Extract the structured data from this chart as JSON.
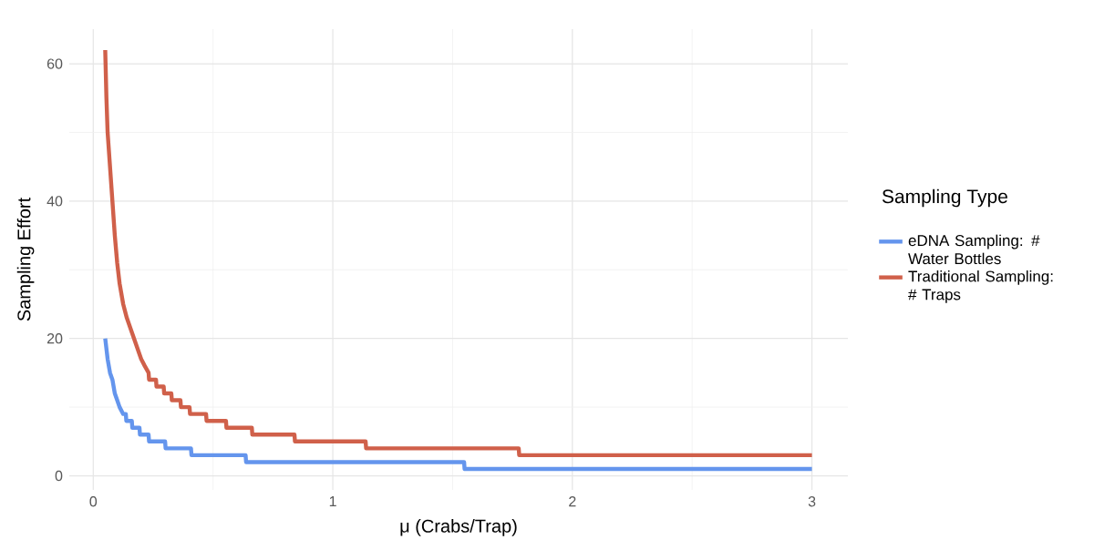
{
  "chart_data": {
    "type": "line",
    "xlabel": "μ (Crabs/Trap)",
    "ylabel": "Sampling Effort",
    "legend_title": "Sampling Type",
    "xlim": [
      -0.1,
      3.15
    ],
    "ylim": [
      -2.05,
      65.05
    ],
    "xticks": [
      0,
      1,
      2,
      3
    ],
    "yticks": [
      0,
      20,
      40,
      60
    ],
    "grid": true,
    "legend": "right",
    "marker": "none",
    "line_style": "solid",
    "series": [
      {
        "name": "eDNA Sampling: # Water Bottles",
        "color": "#6495ed",
        "x": [
          0.05,
          0.06,
          0.07,
          0.08,
          0.09,
          0.1,
          0.11,
          0.125,
          0.136,
          0.138,
          0.161,
          0.163,
          0.193,
          0.195,
          0.231,
          0.233,
          0.3,
          0.302,
          0.408,
          0.41,
          0.636,
          0.638,
          1.548,
          1.55,
          3.0
        ],
        "values": [
          20,
          17,
          15,
          14,
          12,
          11,
          10,
          9,
          9,
          8,
          8,
          7,
          7,
          6,
          6,
          5,
          5,
          4,
          4,
          3,
          3,
          2,
          2,
          1,
          1
        ]
      },
      {
        "name": "Traditional Sampling: # Traps",
        "color": "#d0604a",
        "x": [
          0.05,
          0.055,
          0.06,
          0.07,
          0.08,
          0.09,
          0.1,
          0.11,
          0.125,
          0.14,
          0.17,
          0.2,
          0.215,
          0.231,
          0.233,
          0.262,
          0.264,
          0.294,
          0.296,
          0.326,
          0.328,
          0.364,
          0.366,
          0.402,
          0.404,
          0.471,
          0.473,
          0.554,
          0.556,
          0.662,
          0.664,
          0.84,
          0.842,
          1.137,
          1.139,
          1.776,
          1.778,
          3.0
        ],
        "values": [
          62,
          55,
          50,
          45,
          40,
          35,
          31,
          28,
          25,
          23,
          20,
          17,
          16,
          15,
          14,
          14,
          13,
          13,
          12,
          12,
          11,
          11,
          10,
          10,
          9,
          9,
          8,
          8,
          7,
          7,
          6,
          6,
          5,
          5,
          4,
          4,
          3,
          3
        ]
      }
    ]
  }
}
